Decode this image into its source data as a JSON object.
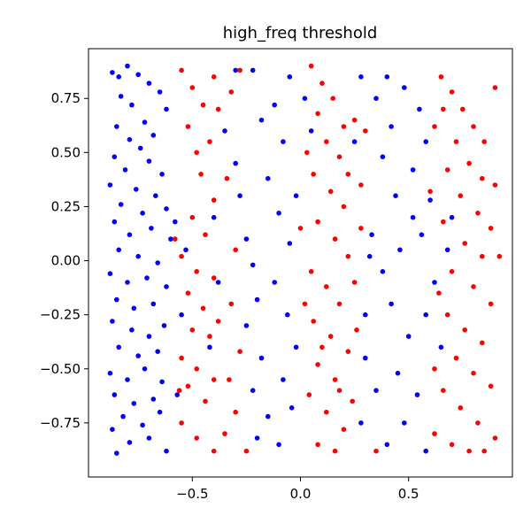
{
  "chart_data": {
    "type": "scatter",
    "title": "high_freq threshold",
    "xlabel": "",
    "ylabel": "",
    "xlim": [
      -0.98,
      0.98
    ],
    "ylim": [
      -1.0,
      0.98
    ],
    "x_ticks": [
      -0.5,
      0.0,
      0.5
    ],
    "x_tick_labels": [
      "−0.5",
      "0.0",
      "0.5"
    ],
    "y_ticks": [
      -0.75,
      -0.5,
      -0.25,
      0.0,
      0.25,
      0.5,
      0.75
    ],
    "y_tick_labels": [
      "−0.75",
      "−0.50",
      "−0.25",
      "0.00",
      "0.25",
      "0.50",
      "0.75"
    ],
    "grid": false,
    "legend": "none",
    "colors": {
      "class_0": "#0000ff",
      "class_1": "#ff0000"
    },
    "series": [
      {
        "values": [
          [
            -0.87,
            0.87
          ],
          [
            -0.84,
            0.85
          ],
          [
            -0.8,
            0.9
          ],
          [
            -0.75,
            0.86
          ],
          [
            -0.7,
            0.82
          ],
          [
            -0.83,
            0.76
          ],
          [
            -0.78,
            0.72
          ],
          [
            -0.65,
            0.78
          ],
          [
            -0.62,
            0.7
          ],
          [
            -0.72,
            0.64
          ],
          [
            -0.85,
            0.62
          ],
          [
            -0.79,
            0.56
          ],
          [
            -0.74,
            0.52
          ],
          [
            -0.68,
            0.58
          ],
          [
            -0.86,
            0.48
          ],
          [
            -0.81,
            0.42
          ],
          [
            -0.7,
            0.46
          ],
          [
            -0.64,
            0.4
          ],
          [
            -0.88,
            0.35
          ],
          [
            -0.76,
            0.33
          ],
          [
            -0.67,
            0.3
          ],
          [
            -0.83,
            0.26
          ],
          [
            -0.73,
            0.22
          ],
          [
            -0.62,
            0.24
          ],
          [
            -0.86,
            0.18
          ],
          [
            -0.79,
            0.12
          ],
          [
            -0.69,
            0.15
          ],
          [
            -0.6,
            0.1
          ],
          [
            -0.84,
            0.05
          ],
          [
            -0.75,
            0.02
          ],
          [
            -0.66,
            -0.01
          ],
          [
            -0.88,
            -0.06
          ],
          [
            -0.8,
            -0.1
          ],
          [
            -0.71,
            -0.08
          ],
          [
            -0.62,
            -0.12
          ],
          [
            -0.85,
            -0.18
          ],
          [
            -0.77,
            -0.22
          ],
          [
            -0.68,
            -0.2
          ],
          [
            -0.87,
            -0.28
          ],
          [
            -0.78,
            -0.32
          ],
          [
            -0.7,
            -0.35
          ],
          [
            -0.63,
            -0.3
          ],
          [
            -0.84,
            -0.4
          ],
          [
            -0.75,
            -0.44
          ],
          [
            -0.66,
            -0.42
          ],
          [
            -0.88,
            -0.52
          ],
          [
            -0.8,
            -0.55
          ],
          [
            -0.72,
            -0.5
          ],
          [
            -0.64,
            -0.56
          ],
          [
            -0.86,
            -0.62
          ],
          [
            -0.77,
            -0.66
          ],
          [
            -0.68,
            -0.64
          ],
          [
            -0.82,
            -0.72
          ],
          [
            -0.73,
            -0.76
          ],
          [
            -0.65,
            -0.7
          ],
          [
            -0.87,
            -0.78
          ],
          [
            -0.79,
            -0.84
          ],
          [
            -0.7,
            -0.82
          ],
          [
            -0.85,
            -0.89
          ],
          [
            -0.62,
            -0.88
          ],
          [
            -0.58,
            0.18
          ],
          [
            -0.55,
            -0.25
          ],
          [
            -0.57,
            -0.62
          ],
          [
            -0.53,
            0.05
          ],
          [
            -0.35,
            0.6
          ],
          [
            -0.3,
            0.45
          ],
          [
            -0.28,
            0.3
          ],
          [
            -0.25,
            0.1
          ],
          [
            -0.22,
            -0.02
          ],
          [
            -0.2,
            -0.18
          ],
          [
            -0.25,
            -0.3
          ],
          [
            -0.18,
            -0.45
          ],
          [
            -0.22,
            -0.6
          ],
          [
            -0.15,
            -0.72
          ],
          [
            -0.2,
            -0.82
          ],
          [
            -0.12,
            0.72
          ],
          [
            -0.08,
            0.55
          ],
          [
            -0.15,
            0.38
          ],
          [
            -0.1,
            0.22
          ],
          [
            -0.05,
            0.08
          ],
          [
            -0.12,
            -0.1
          ],
          [
            -0.06,
            -0.25
          ],
          [
            -0.02,
            -0.4
          ],
          [
            -0.08,
            -0.55
          ],
          [
            -0.04,
            -0.68
          ],
          [
            -0.1,
            -0.85
          ],
          [
            -0.22,
            0.88
          ],
          [
            -0.18,
            0.65
          ],
          [
            -0.05,
            0.85
          ],
          [
            -0.02,
            0.3
          ],
          [
            0.02,
            0.75
          ],
          [
            0.05,
            0.6
          ],
          [
            0.3,
            -0.45
          ],
          [
            0.35,
            -0.6
          ],
          [
            0.28,
            -0.75
          ],
          [
            0.4,
            -0.85
          ],
          [
            0.45,
            -0.52
          ],
          [
            0.5,
            -0.35
          ],
          [
            0.42,
            -0.2
          ],
          [
            0.38,
            -0.05
          ],
          [
            0.46,
            0.05
          ],
          [
            0.52,
            0.2
          ],
          [
            0.44,
            0.3
          ],
          [
            0.38,
            0.48
          ],
          [
            0.42,
            0.62
          ],
          [
            0.35,
            0.75
          ],
          [
            0.4,
            0.85
          ],
          [
            0.48,
            0.8
          ],
          [
            0.55,
            0.7
          ],
          [
            0.58,
            0.55
          ],
          [
            0.52,
            0.42
          ],
          [
            0.6,
            0.28
          ],
          [
            0.56,
            0.12
          ],
          [
            0.62,
            -0.1
          ],
          [
            0.58,
            -0.25
          ],
          [
            0.54,
            -0.62
          ],
          [
            0.48,
            -0.75
          ],
          [
            0.58,
            -0.88
          ],
          [
            0.33,
            0.12
          ],
          [
            0.3,
            -0.25
          ],
          [
            0.68,
            0.05
          ],
          [
            0.7,
            0.2
          ],
          [
            0.65,
            -0.4
          ],
          [
            0.25,
            0.55
          ],
          [
            0.28,
            0.85
          ],
          [
            0.32,
            0.02
          ],
          [
            -0.3,
            0.88
          ],
          [
            -0.4,
            0.2
          ],
          [
            -0.38,
            -0.1
          ],
          [
            -0.42,
            -0.4
          ]
        ]
      },
      {
        "values": [
          [
            -0.55,
            0.88
          ],
          [
            -0.5,
            0.8
          ],
          [
            -0.45,
            0.72
          ],
          [
            -0.52,
            0.62
          ],
          [
            -0.48,
            0.5
          ],
          [
            -0.4,
            0.85
          ],
          [
            -0.38,
            0.7
          ],
          [
            -0.42,
            0.55
          ],
          [
            -0.46,
            0.4
          ],
          [
            -0.4,
            0.28
          ],
          [
            -0.5,
            0.2
          ],
          [
            -0.44,
            0.12
          ],
          [
            -0.55,
            0.02
          ],
          [
            -0.48,
            -0.05
          ],
          [
            -0.4,
            -0.08
          ],
          [
            -0.52,
            -0.15
          ],
          [
            -0.45,
            -0.22
          ],
          [
            -0.38,
            -0.28
          ],
          [
            -0.5,
            -0.32
          ],
          [
            -0.42,
            -0.35
          ],
          [
            -0.55,
            -0.45
          ],
          [
            -0.48,
            -0.5
          ],
          [
            -0.4,
            -0.55
          ],
          [
            -0.52,
            -0.58
          ],
          [
            -0.44,
            -0.65
          ],
          [
            -0.55,
            -0.75
          ],
          [
            -0.48,
            -0.82
          ],
          [
            -0.4,
            -0.88
          ],
          [
            -0.35,
            -0.8
          ],
          [
            -0.3,
            -0.7
          ],
          [
            -0.33,
            -0.55
          ],
          [
            -0.28,
            -0.42
          ],
          [
            -0.32,
            -0.2
          ],
          [
            -0.3,
            0.05
          ],
          [
            -0.34,
            0.38
          ],
          [
            -0.32,
            0.78
          ],
          [
            -0.28,
            0.88
          ],
          [
            0.05,
            0.9
          ],
          [
            0.1,
            0.82
          ],
          [
            0.15,
            0.75
          ],
          [
            0.08,
            0.68
          ],
          [
            0.12,
            0.55
          ],
          [
            0.18,
            0.48
          ],
          [
            0.06,
            0.4
          ],
          [
            0.14,
            0.32
          ],
          [
            0.2,
            0.25
          ],
          [
            0.08,
            0.18
          ],
          [
            0.16,
            0.1
          ],
          [
            0.22,
            0.02
          ],
          [
            0.05,
            -0.05
          ],
          [
            0.12,
            -0.12
          ],
          [
            0.18,
            -0.2
          ],
          [
            0.06,
            -0.28
          ],
          [
            0.14,
            -0.35
          ],
          [
            0.22,
            -0.42
          ],
          [
            0.08,
            -0.48
          ],
          [
            0.16,
            -0.55
          ],
          [
            0.04,
            -0.62
          ],
          [
            0.12,
            -0.7
          ],
          [
            0.2,
            -0.78
          ],
          [
            0.08,
            -0.85
          ],
          [
            0.16,
            -0.88
          ],
          [
            0.25,
            0.65
          ],
          [
            0.22,
            0.4
          ],
          [
            0.25,
            -0.1
          ],
          [
            0.24,
            -0.65
          ],
          [
            0.3,
            0.6
          ],
          [
            0.28,
            0.35
          ],
          [
            0.26,
            -0.32
          ],
          [
            0.02,
            -0.2
          ],
          [
            0.0,
            0.15
          ],
          [
            0.03,
            0.5
          ],
          [
            0.65,
            0.85
          ],
          [
            0.7,
            0.78
          ],
          [
            0.75,
            0.7
          ],
          [
            0.8,
            0.62
          ],
          [
            0.85,
            0.55
          ],
          [
            0.9,
            0.8
          ],
          [
            0.72,
            0.55
          ],
          [
            0.78,
            0.45
          ],
          [
            0.84,
            0.38
          ],
          [
            0.68,
            0.42
          ],
          [
            0.74,
            0.3
          ],
          [
            0.82,
            0.22
          ],
          [
            0.88,
            0.15
          ],
          [
            0.66,
            0.18
          ],
          [
            0.76,
            0.08
          ],
          [
            0.84,
            0.02
          ],
          [
            0.7,
            -0.05
          ],
          [
            0.8,
            -0.12
          ],
          [
            0.88,
            -0.2
          ],
          [
            0.68,
            -0.25
          ],
          [
            0.76,
            -0.32
          ],
          [
            0.84,
            -0.38
          ],
          [
            0.72,
            -0.45
          ],
          [
            0.8,
            -0.52
          ],
          [
            0.88,
            -0.58
          ],
          [
            0.66,
            -0.6
          ],
          [
            0.74,
            -0.68
          ],
          [
            0.82,
            -0.75
          ],
          [
            0.9,
            -0.82
          ],
          [
            0.7,
            -0.85
          ],
          [
            0.78,
            -0.88
          ],
          [
            0.62,
            -0.8
          ],
          [
            0.85,
            -0.88
          ],
          [
            0.6,
            0.32
          ],
          [
            0.62,
            0.62
          ],
          [
            0.64,
            -0.15
          ],
          [
            0.62,
            -0.5
          ],
          [
            0.92,
            0.02
          ],
          [
            0.9,
            0.35
          ],
          [
            -0.58,
            0.1
          ],
          [
            -0.56,
            -0.6
          ],
          [
            -0.25,
            -0.88
          ],
          [
            0.35,
            -0.88
          ],
          [
            0.1,
            -0.4
          ],
          [
            0.2,
            0.62
          ],
          [
            0.28,
            0.15
          ],
          [
            0.18,
            -0.6
          ],
          [
            0.66,
            0.7
          ]
        ]
      }
    ]
  }
}
